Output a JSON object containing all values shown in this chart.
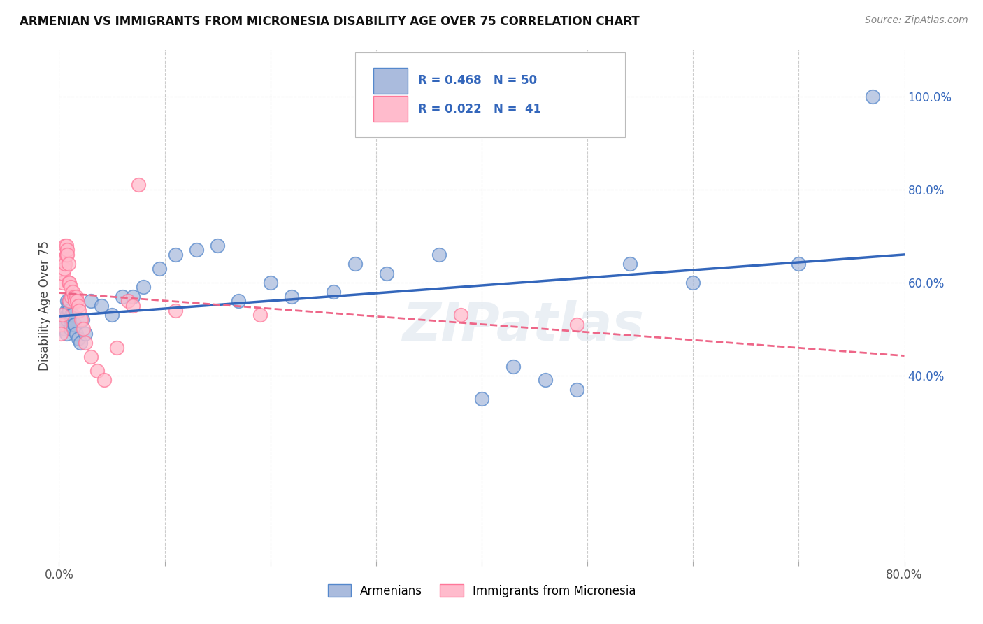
{
  "title": "ARMENIAN VS IMMIGRANTS FROM MICRONESIA DISABILITY AGE OVER 75 CORRELATION CHART",
  "source": "Source: ZipAtlas.com",
  "ylabel": "Disability Age Over 75",
  "xlim": [
    0.0,
    0.8
  ],
  "ylim": [
    0.0,
    1.1
  ],
  "xtick_positions": [
    0.0,
    0.1,
    0.2,
    0.3,
    0.4,
    0.5,
    0.6,
    0.7,
    0.8
  ],
  "xticklabels": [
    "0.0%",
    "",
    "",
    "",
    "",
    "",
    "",
    "",
    "80.0%"
  ],
  "ytick_positions": [
    0.4,
    0.6,
    0.8,
    1.0
  ],
  "ytick_labels": [
    "40.0%",
    "60.0%",
    "80.0%",
    "100.0%"
  ],
  "legend_armenians_label": "Armenians",
  "legend_micronesia_label": "Immigrants from Micronesia",
  "r_armenians": "R = 0.468",
  "n_armenians": "N = 50",
  "r_micronesia": "R = 0.022",
  "n_micronesia": "N =  41",
  "color_armenians_fill": "#AABBDD",
  "color_armenians_edge": "#5588CC",
  "color_micronesia_fill": "#FFBBCC",
  "color_micronesia_edge": "#FF7799",
  "color_line_armenians": "#3366BB",
  "color_line_micronesia": "#EE6688",
  "watermark": "ZIPatlas",
  "armenians_x": [
    0.003,
    0.005,
    0.006,
    0.006,
    0.007,
    0.007,
    0.008,
    0.008,
    0.008,
    0.009,
    0.009,
    0.01,
    0.01,
    0.011,
    0.011,
    0.012,
    0.012,
    0.013,
    0.014,
    0.015,
    0.016,
    0.018,
    0.02,
    0.022,
    0.025,
    0.03,
    0.04,
    0.05,
    0.06,
    0.07,
    0.08,
    0.095,
    0.11,
    0.13,
    0.15,
    0.17,
    0.2,
    0.22,
    0.26,
    0.28,
    0.31,
    0.36,
    0.4,
    0.43,
    0.46,
    0.49,
    0.54,
    0.6,
    0.7,
    0.77
  ],
  "armenians_y": [
    0.51,
    0.5,
    0.52,
    0.51,
    0.49,
    0.54,
    0.53,
    0.56,
    0.52,
    0.55,
    0.54,
    0.56,
    0.54,
    0.51,
    0.5,
    0.53,
    0.52,
    0.53,
    0.51,
    0.51,
    0.49,
    0.48,
    0.47,
    0.52,
    0.49,
    0.56,
    0.55,
    0.53,
    0.57,
    0.57,
    0.59,
    0.63,
    0.66,
    0.67,
    0.68,
    0.56,
    0.6,
    0.57,
    0.58,
    0.64,
    0.62,
    0.66,
    0.35,
    0.42,
    0.39,
    0.37,
    0.64,
    0.6,
    0.64,
    1.0
  ],
  "micronesia_x": [
    0.001,
    0.002,
    0.003,
    0.003,
    0.004,
    0.004,
    0.005,
    0.005,
    0.006,
    0.006,
    0.007,
    0.007,
    0.008,
    0.008,
    0.009,
    0.009,
    0.01,
    0.01,
    0.011,
    0.012,
    0.013,
    0.014,
    0.015,
    0.016,
    0.017,
    0.018,
    0.019,
    0.021,
    0.023,
    0.025,
    0.03,
    0.036,
    0.043,
    0.055,
    0.065,
    0.07,
    0.075,
    0.11,
    0.19,
    0.38,
    0.49
  ],
  "micronesia_y": [
    0.51,
    0.49,
    0.53,
    0.65,
    0.6,
    0.62,
    0.65,
    0.63,
    0.68,
    0.64,
    0.68,
    0.66,
    0.67,
    0.66,
    0.64,
    0.6,
    0.6,
    0.56,
    0.59,
    0.57,
    0.58,
    0.57,
    0.56,
    0.57,
    0.56,
    0.55,
    0.54,
    0.52,
    0.5,
    0.47,
    0.44,
    0.41,
    0.39,
    0.46,
    0.56,
    0.55,
    0.81,
    0.54,
    0.53,
    0.53,
    0.51
  ]
}
